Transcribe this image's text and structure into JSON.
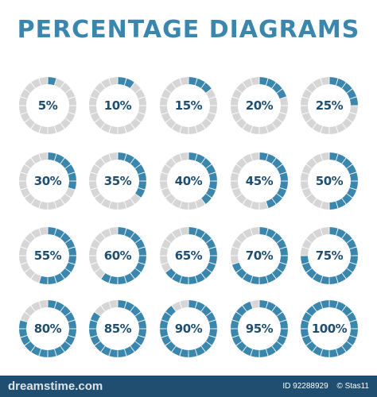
{
  "title": "PERCENTAGE DIAGRAMS",
  "colors": {
    "fill": "#3a86ad",
    "empty": "#d6d6d6",
    "label": "#1f4e70",
    "footer": "#1f4e70"
  },
  "segments_per_ring": 20,
  "rows": [
    [
      {
        "value": 5,
        "label": "5%"
      },
      {
        "value": 10,
        "label": "10%"
      },
      {
        "value": 15,
        "label": "15%"
      },
      {
        "value": 20,
        "label": "20%"
      },
      {
        "value": 25,
        "label": "25%"
      }
    ],
    [
      {
        "value": 30,
        "label": "30%"
      },
      {
        "value": 35,
        "label": "35%"
      },
      {
        "value": 40,
        "label": "40%"
      },
      {
        "value": 45,
        "label": "45%"
      },
      {
        "value": 50,
        "label": "50%"
      }
    ],
    [
      {
        "value": 55,
        "label": "55%"
      },
      {
        "value": 60,
        "label": "60%"
      },
      {
        "value": 65,
        "label": "65%"
      },
      {
        "value": 70,
        "label": "70%"
      },
      {
        "value": 75,
        "label": "75%"
      }
    ],
    [
      {
        "value": 80,
        "label": "80%"
      },
      {
        "value": 85,
        "label": "85%"
      },
      {
        "value": 90,
        "label": "90%"
      },
      {
        "value": 95,
        "label": "95%"
      },
      {
        "value": 100,
        "label": "100%"
      }
    ]
  ],
  "footer": {
    "brand": "dreamstime.com",
    "id_text": "ID 92288929",
    "author_text": "© Stas11"
  }
}
